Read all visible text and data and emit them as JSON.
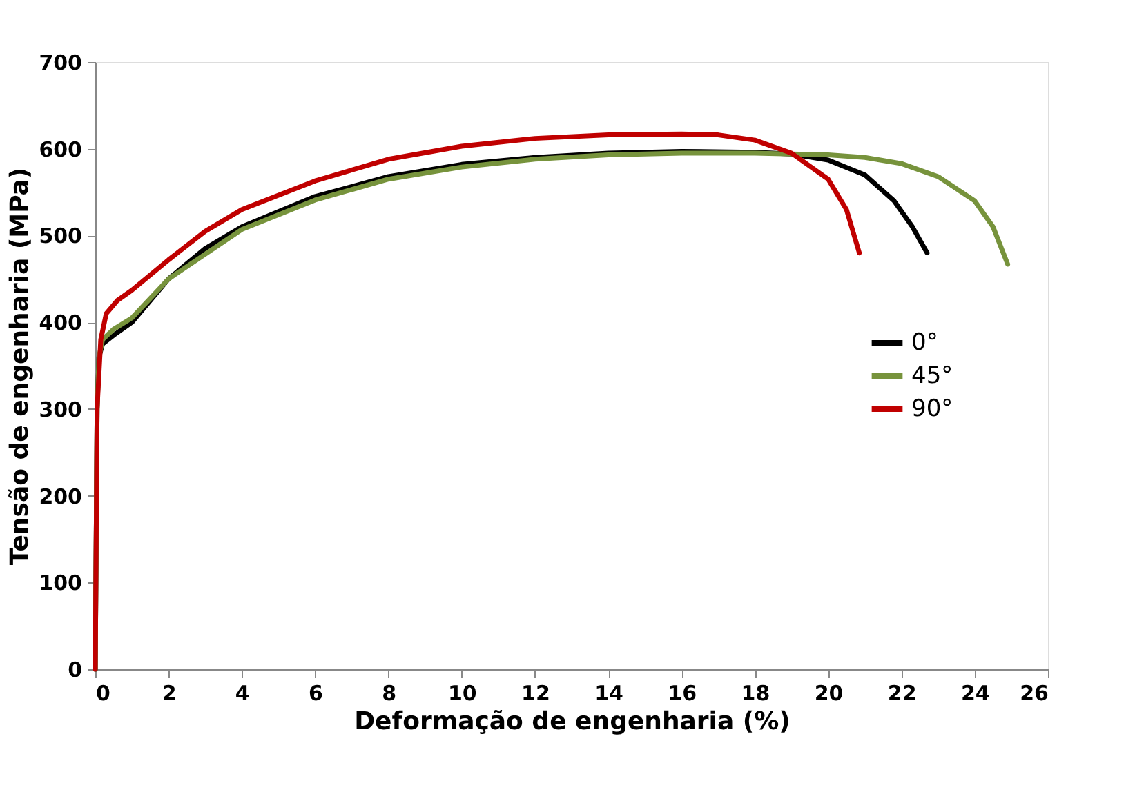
{
  "chart_data": {
    "type": "line",
    "xlabel": "Deformação de engenharia (%)",
    "ylabel": "Tensão de engenharia (MPa)",
    "xlim": [
      0,
      26
    ],
    "xticks": [
      0,
      2,
      4,
      6,
      8,
      10,
      12,
      14,
      16,
      18,
      20,
      22,
      24,
      26
    ],
    "ylim": [
      0,
      700
    ],
    "yticks": [
      0,
      100,
      200,
      300,
      400,
      500,
      600,
      700
    ],
    "grid": false,
    "legend": "right",
    "line_style": "solid",
    "marker": "none",
    "series": [
      {
        "name": "0°",
        "color": "#000000",
        "x": [
          0,
          0.05,
          0.1,
          0.2,
          0.5,
          1,
          2,
          3,
          4,
          6,
          8,
          10,
          12,
          14,
          16,
          18,
          19,
          20,
          21,
          21.8,
          22.3,
          22.7
        ],
        "values": [
          0,
          300,
          360,
          375,
          385,
          400,
          450,
          485,
          510,
          545,
          568,
          582,
          590,
          595,
          597,
          596,
          594,
          587,
          570,
          540,
          510,
          480
        ]
      },
      {
        "name": "45°",
        "color": "#77933c",
        "x": [
          0,
          0.05,
          0.1,
          0.2,
          0.5,
          1,
          2,
          4,
          6,
          8,
          10,
          12,
          14,
          16,
          18,
          20,
          21,
          22,
          23,
          24,
          24.5,
          24.9
        ],
        "values": [
          0,
          300,
          360,
          380,
          392,
          405,
          450,
          507,
          541,
          565,
          579,
          588,
          593,
          595,
          595,
          593,
          590,
          583,
          568,
          540,
          510,
          467
        ]
      },
      {
        "name": "90°",
        "color": "#c00000",
        "x": [
          0,
          0.05,
          0.15,
          0.3,
          0.6,
          1,
          2,
          3,
          4,
          6,
          8,
          10,
          12,
          14,
          16,
          17,
          18,
          19,
          20,
          20.5,
          20.85
        ],
        "values": [
          0,
          300,
          380,
          410,
          425,
          437,
          472,
          505,
          530,
          563,
          588,
          603,
          612,
          616,
          617,
          616,
          610,
          595,
          565,
          530,
          480
        ]
      }
    ]
  }
}
